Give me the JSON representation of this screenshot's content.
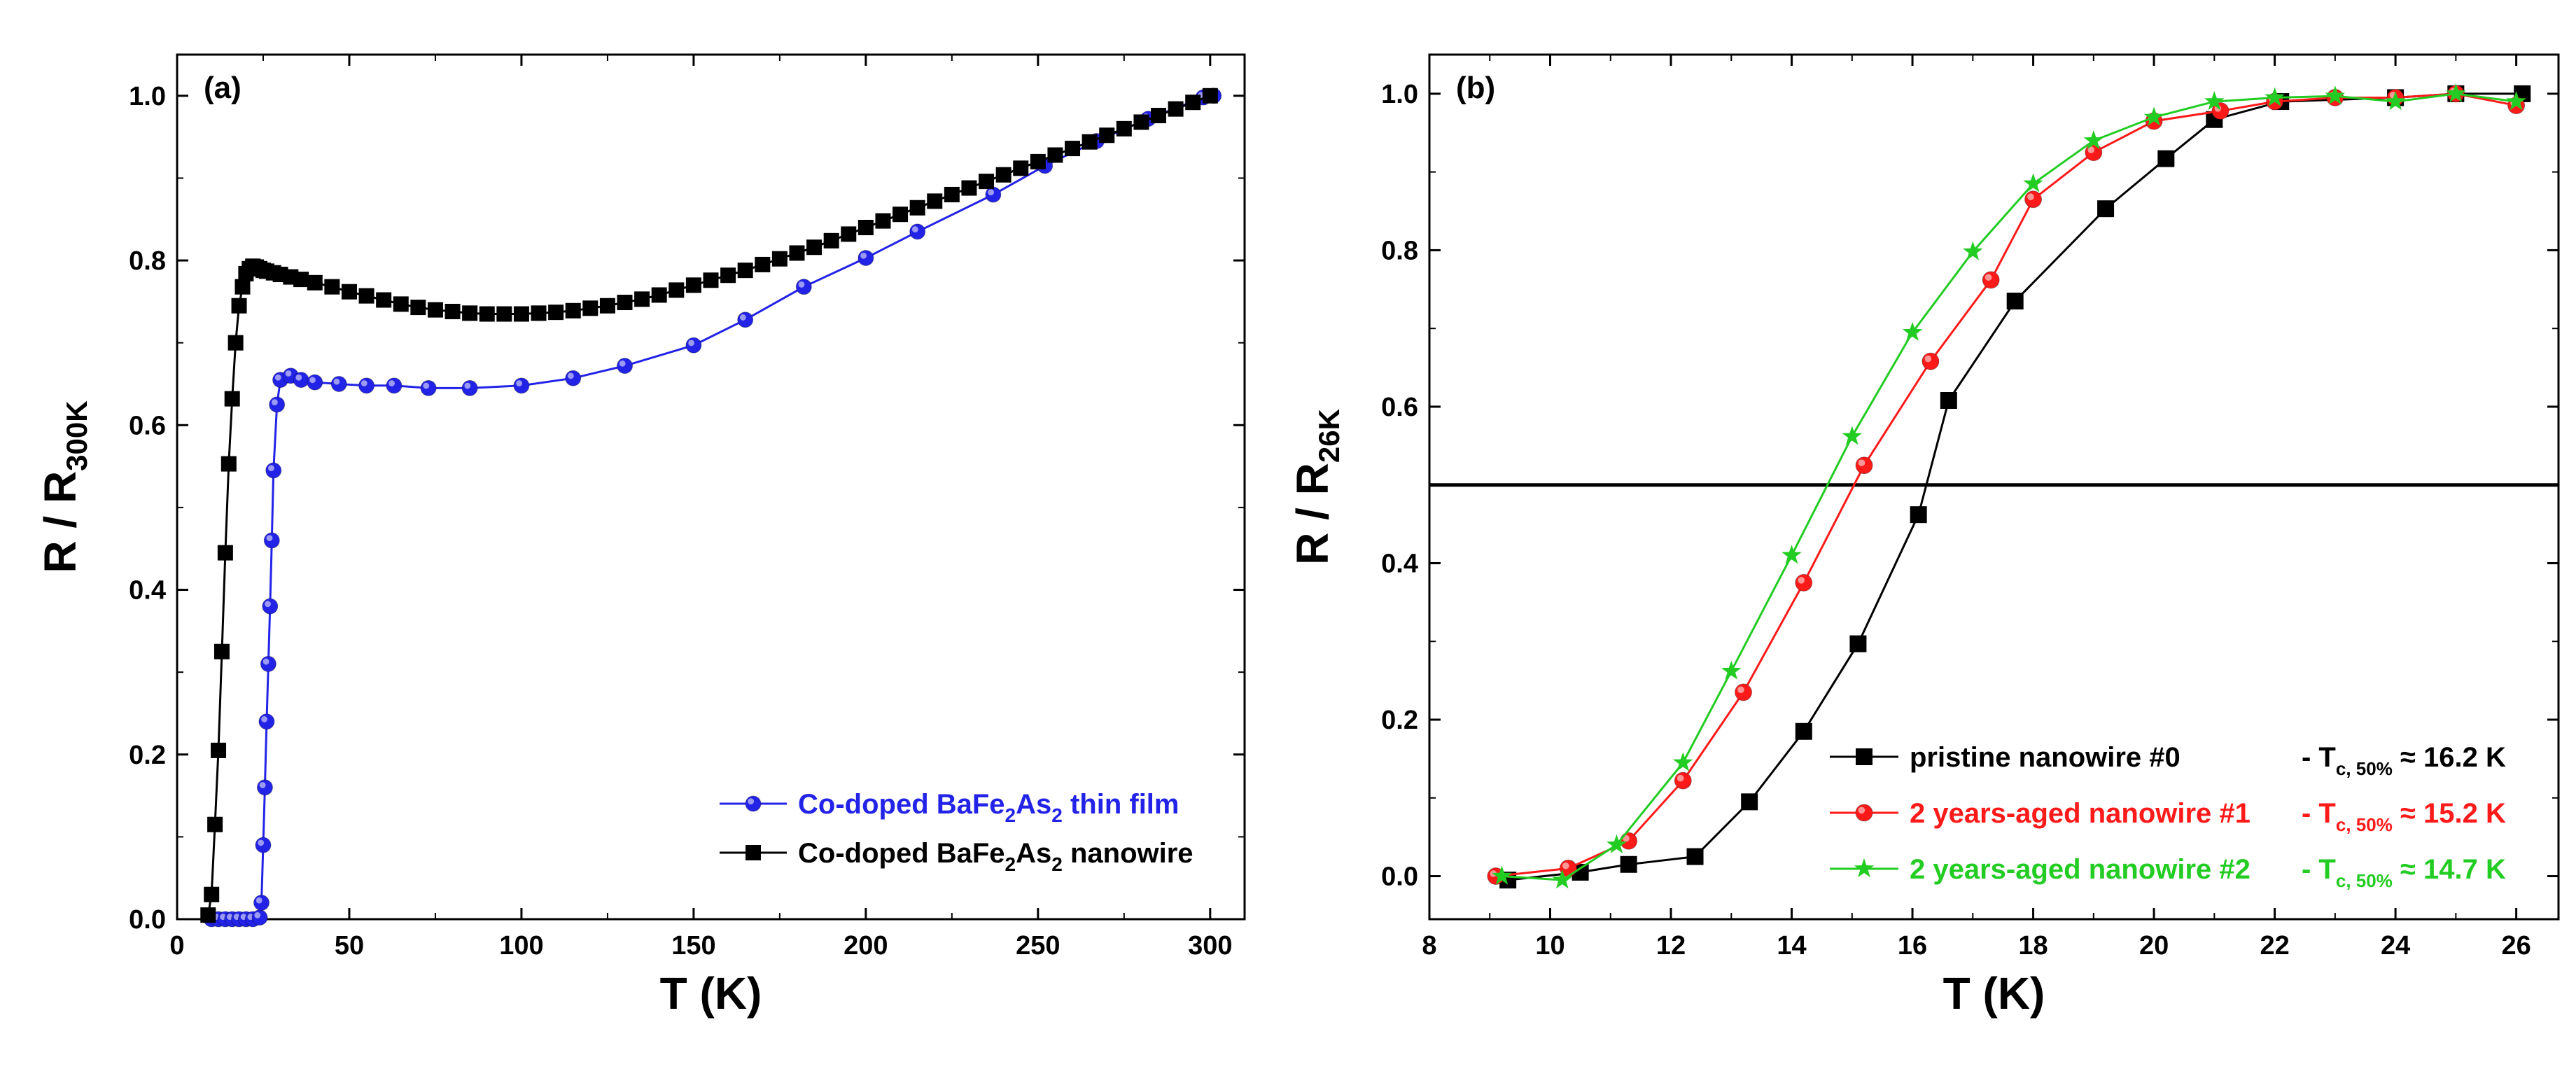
{
  "chart_data": [
    {
      "type": "line",
      "panel_label": "(a)",
      "xlabel": "T (K)",
      "ylabel": {
        "main": "R / R",
        "sub": "300K"
      },
      "xlim": [
        0,
        310
      ],
      "ylim": [
        0,
        1.05
      ],
      "xticks": [
        "0",
        "50",
        "100",
        "150",
        "200",
        "250",
        "300"
      ],
      "yticks": [
        "0.0",
        "0.2",
        "0.4",
        "0.6",
        "0.8",
        "1.0"
      ],
      "xtick_values": [
        0,
        50,
        100,
        150,
        200,
        250,
        300
      ],
      "ytick_values": [
        0,
        0.2,
        0.4,
        0.6,
        0.8,
        1.0
      ],
      "legend_position": "bottom-right",
      "series": [
        {
          "name": "Co-doped BaFe2As2 thin film",
          "legend": {
            "a": "Co-doped BaFe",
            "s1": "2",
            "b": "As",
            "s2": "2",
            "c": " thin film"
          },
          "color": "#2323e8",
          "marker": "sphere",
          "x": [
            10,
            12,
            14,
            16,
            18,
            20,
            22,
            24,
            24.5,
            25,
            25.5,
            26,
            26.5,
            27,
            27.5,
            28,
            29,
            30,
            33,
            36,
            40,
            47,
            55,
            63,
            73,
            85,
            100,
            115,
            130,
            150,
            165,
            182,
            200,
            215,
            237,
            252,
            267,
            282,
            298,
            301
          ],
          "y": [
            0,
            0,
            0,
            0,
            0,
            0,
            0,
            0.002,
            0.02,
            0.09,
            0.16,
            0.24,
            0.31,
            0.38,
            0.46,
            0.545,
            0.625,
            0.655,
            0.66,
            0.655,
            0.652,
            0.65,
            0.648,
            0.648,
            0.645,
            0.645,
            0.648,
            0.657,
            0.672,
            0.697,
            0.728,
            0.768,
            0.803,
            0.835,
            0.88,
            0.915,
            0.945,
            0.972,
            0.998,
            1.0
          ]
        },
        {
          "name": "Co-doped BaFe2As2 nanowire",
          "legend": {
            "a": "Co-doped BaFe",
            "s1": "2",
            "b": "As",
            "s2": "2",
            "c": " nanowire"
          },
          "color": "#000000",
          "marker": "square",
          "x": [
            9,
            10,
            11,
            12,
            13,
            14,
            15,
            16,
            17,
            18,
            19,
            20,
            21,
            22,
            23,
            24,
            25,
            26,
            28,
            30,
            33,
            36,
            40,
            45,
            50,
            55,
            60,
            65,
            70,
            75,
            80,
            85,
            90,
            95,
            100,
            105,
            110,
            115,
            120,
            125,
            130,
            135,
            140,
            145,
            150,
            155,
            160,
            165,
            170,
            175,
            180,
            185,
            190,
            195,
            200,
            205,
            210,
            215,
            220,
            225,
            230,
            235,
            240,
            245,
            250,
            255,
            260,
            265,
            270,
            275,
            280,
            285,
            290,
            295,
            300
          ],
          "y": [
            0.005,
            0.03,
            0.115,
            0.205,
            0.325,
            0.445,
            0.553,
            0.632,
            0.7,
            0.745,
            0.768,
            0.784,
            0.79,
            0.793,
            0.792,
            0.79,
            0.788,
            0.787,
            0.785,
            0.783,
            0.78,
            0.777,
            0.773,
            0.768,
            0.762,
            0.757,
            0.752,
            0.747,
            0.743,
            0.74,
            0.738,
            0.736,
            0.735,
            0.735,
            0.735,
            0.736,
            0.737,
            0.739,
            0.742,
            0.745,
            0.749,
            0.753,
            0.758,
            0.764,
            0.77,
            0.776,
            0.782,
            0.788,
            0.795,
            0.802,
            0.809,
            0.816,
            0.824,
            0.832,
            0.84,
            0.848,
            0.856,
            0.864,
            0.872,
            0.88,
            0.888,
            0.896,
            0.904,
            0.912,
            0.92,
            0.928,
            0.936,
            0.944,
            0.952,
            0.96,
            0.968,
            0.976,
            0.984,
            0.992,
            1.0
          ]
        }
      ]
    },
    {
      "type": "line",
      "panel_label": "(b)",
      "xlabel": "T (K)",
      "ylabel": {
        "main": "R / R",
        "sub": "26K"
      },
      "xlim": [
        8,
        26.7
      ],
      "ylim": [
        -0.055,
        1.05
      ],
      "xticks": [
        "8",
        "10",
        "12",
        "14",
        "16",
        "18",
        "20",
        "22",
        "24",
        "26"
      ],
      "yticks": [
        "0.0",
        "0.2",
        "0.4",
        "0.6",
        "0.8",
        "1.0"
      ],
      "xtick_values": [
        8,
        10,
        12,
        14,
        16,
        18,
        20,
        22,
        24,
        26
      ],
      "ytick_values": [
        0,
        0.2,
        0.4,
        0.6,
        0.8,
        1.0
      ],
      "hline": 0.5,
      "legend_position": "bottom-right",
      "series": [
        {
          "name": "pristine nanowire #0",
          "legend": {
            "text": "pristine nanowire #0",
            "tc": "- T",
            "tc_sub": "c, 50%",
            "tc_val": " ≈ 16.2 K"
          },
          "color": "#000000",
          "marker": "square",
          "x": [
            9.3,
            10.5,
            11.3,
            12.4,
            13.3,
            14.2,
            15.1,
            16.1,
            16.6,
            17.7,
            19.2,
            20.2,
            21.0,
            22.1,
            24.0,
            25.0,
            26.1
          ],
          "y": [
            -0.005,
            0.005,
            0.015,
            0.025,
            0.095,
            0.185,
            0.297,
            0.462,
            0.608,
            0.735,
            0.853,
            0.917,
            0.967,
            0.99,
            0.995,
            1.0,
            1.0
          ]
        },
        {
          "name": "2 years-aged nanowire #1",
          "legend": {
            "text": "2 years-aged nanowire #1",
            "tc": "- T",
            "tc_sub": "c, 50%",
            "tc_val": " ≈ 15.2 K"
          },
          "color": "#ff1a1a",
          "marker": "sphere",
          "x": [
            9.1,
            10.3,
            11.3,
            12.2,
            13.2,
            14.2,
            15.2,
            16.3,
            17.3,
            18.0,
            19.0,
            20.0,
            21.1,
            22.0,
            23.0,
            24.0,
            25.0,
            26.0
          ],
          "y": [
            0.0,
            0.01,
            0.045,
            0.122,
            0.235,
            0.375,
            0.525,
            0.658,
            0.762,
            0.865,
            0.925,
            0.965,
            0.978,
            0.99,
            0.995,
            0.995,
            1.0,
            0.985
          ]
        },
        {
          "name": "2 years-aged nanowire #2",
          "legend": {
            "text": "2 years-aged nanowire #2",
            "tc": "- T",
            "tc_sub": "c, 50%",
            "tc_val": " ≈ 14.7 K"
          },
          "color": "#22cc22",
          "marker": "star",
          "x": [
            9.2,
            10.2,
            11.1,
            12.2,
            13.0,
            14.0,
            15.0,
            16.0,
            17.0,
            18.0,
            19.0,
            20.0,
            21.0,
            22.0,
            23.0,
            24.0,
            25.0,
            26.0
          ],
          "y": [
            0.0,
            -0.005,
            0.04,
            0.145,
            0.262,
            0.41,
            0.562,
            0.695,
            0.798,
            0.885,
            0.94,
            0.97,
            0.99,
            0.995,
            0.997,
            0.99,
            1.0,
            0.99
          ]
        }
      ]
    }
  ]
}
